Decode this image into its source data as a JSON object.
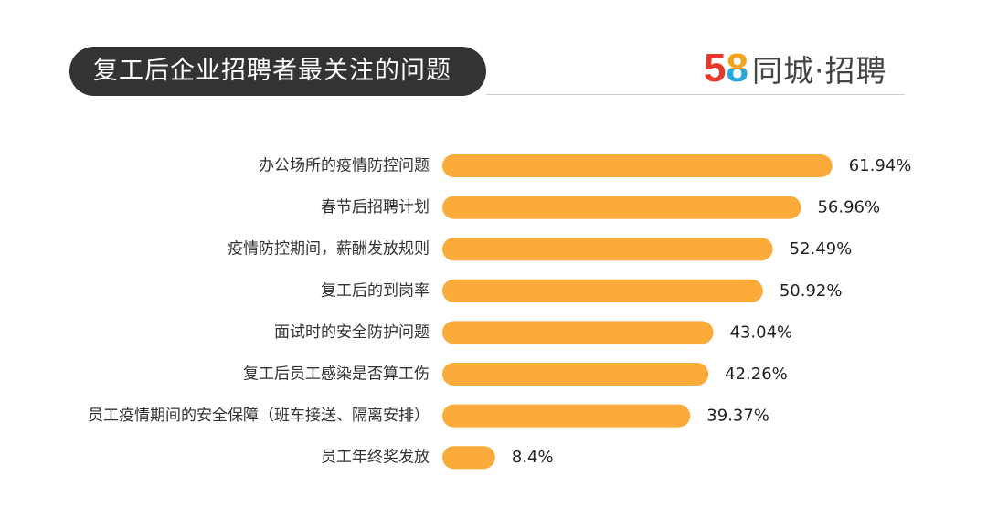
{
  "header": {
    "title": "复工后企业招聘者最关注的问题",
    "logo": {
      "digit_5": "5",
      "digit_8": "8",
      "text": "同城·招聘",
      "color_5": "#e8392c",
      "color_8_top": "#f7a21b",
      "color_8_bottom": "#2aa6df"
    }
  },
  "chart_data": {
    "type": "bar",
    "orientation": "horizontal",
    "title": "复工后企业招聘者最关注的问题",
    "xlabel": "",
    "ylabel": "",
    "categories": [
      "办公场所的疫情防控问题",
      "春节后招聘计划",
      "疫情防控期间，薪酬发放规则",
      "复工后的到岗率",
      "面试时的安全防护问题",
      "复工后员工感染是否算工伤",
      "员工疫情期间的安全保障（班车接送、隔离安排）",
      "员工年终奖发放"
    ],
    "values": [
      61.94,
      56.96,
      52.49,
      50.92,
      43.04,
      42.26,
      39.37,
      8.4
    ],
    "value_labels": [
      "61.94%",
      "56.96%",
      "52.49%",
      "50.92%",
      "43.04%",
      "42.26%",
      "39.37%",
      "8.4%"
    ],
    "unit": "%",
    "bar_color": "#fbab3a",
    "grid": false,
    "legend": "none"
  }
}
